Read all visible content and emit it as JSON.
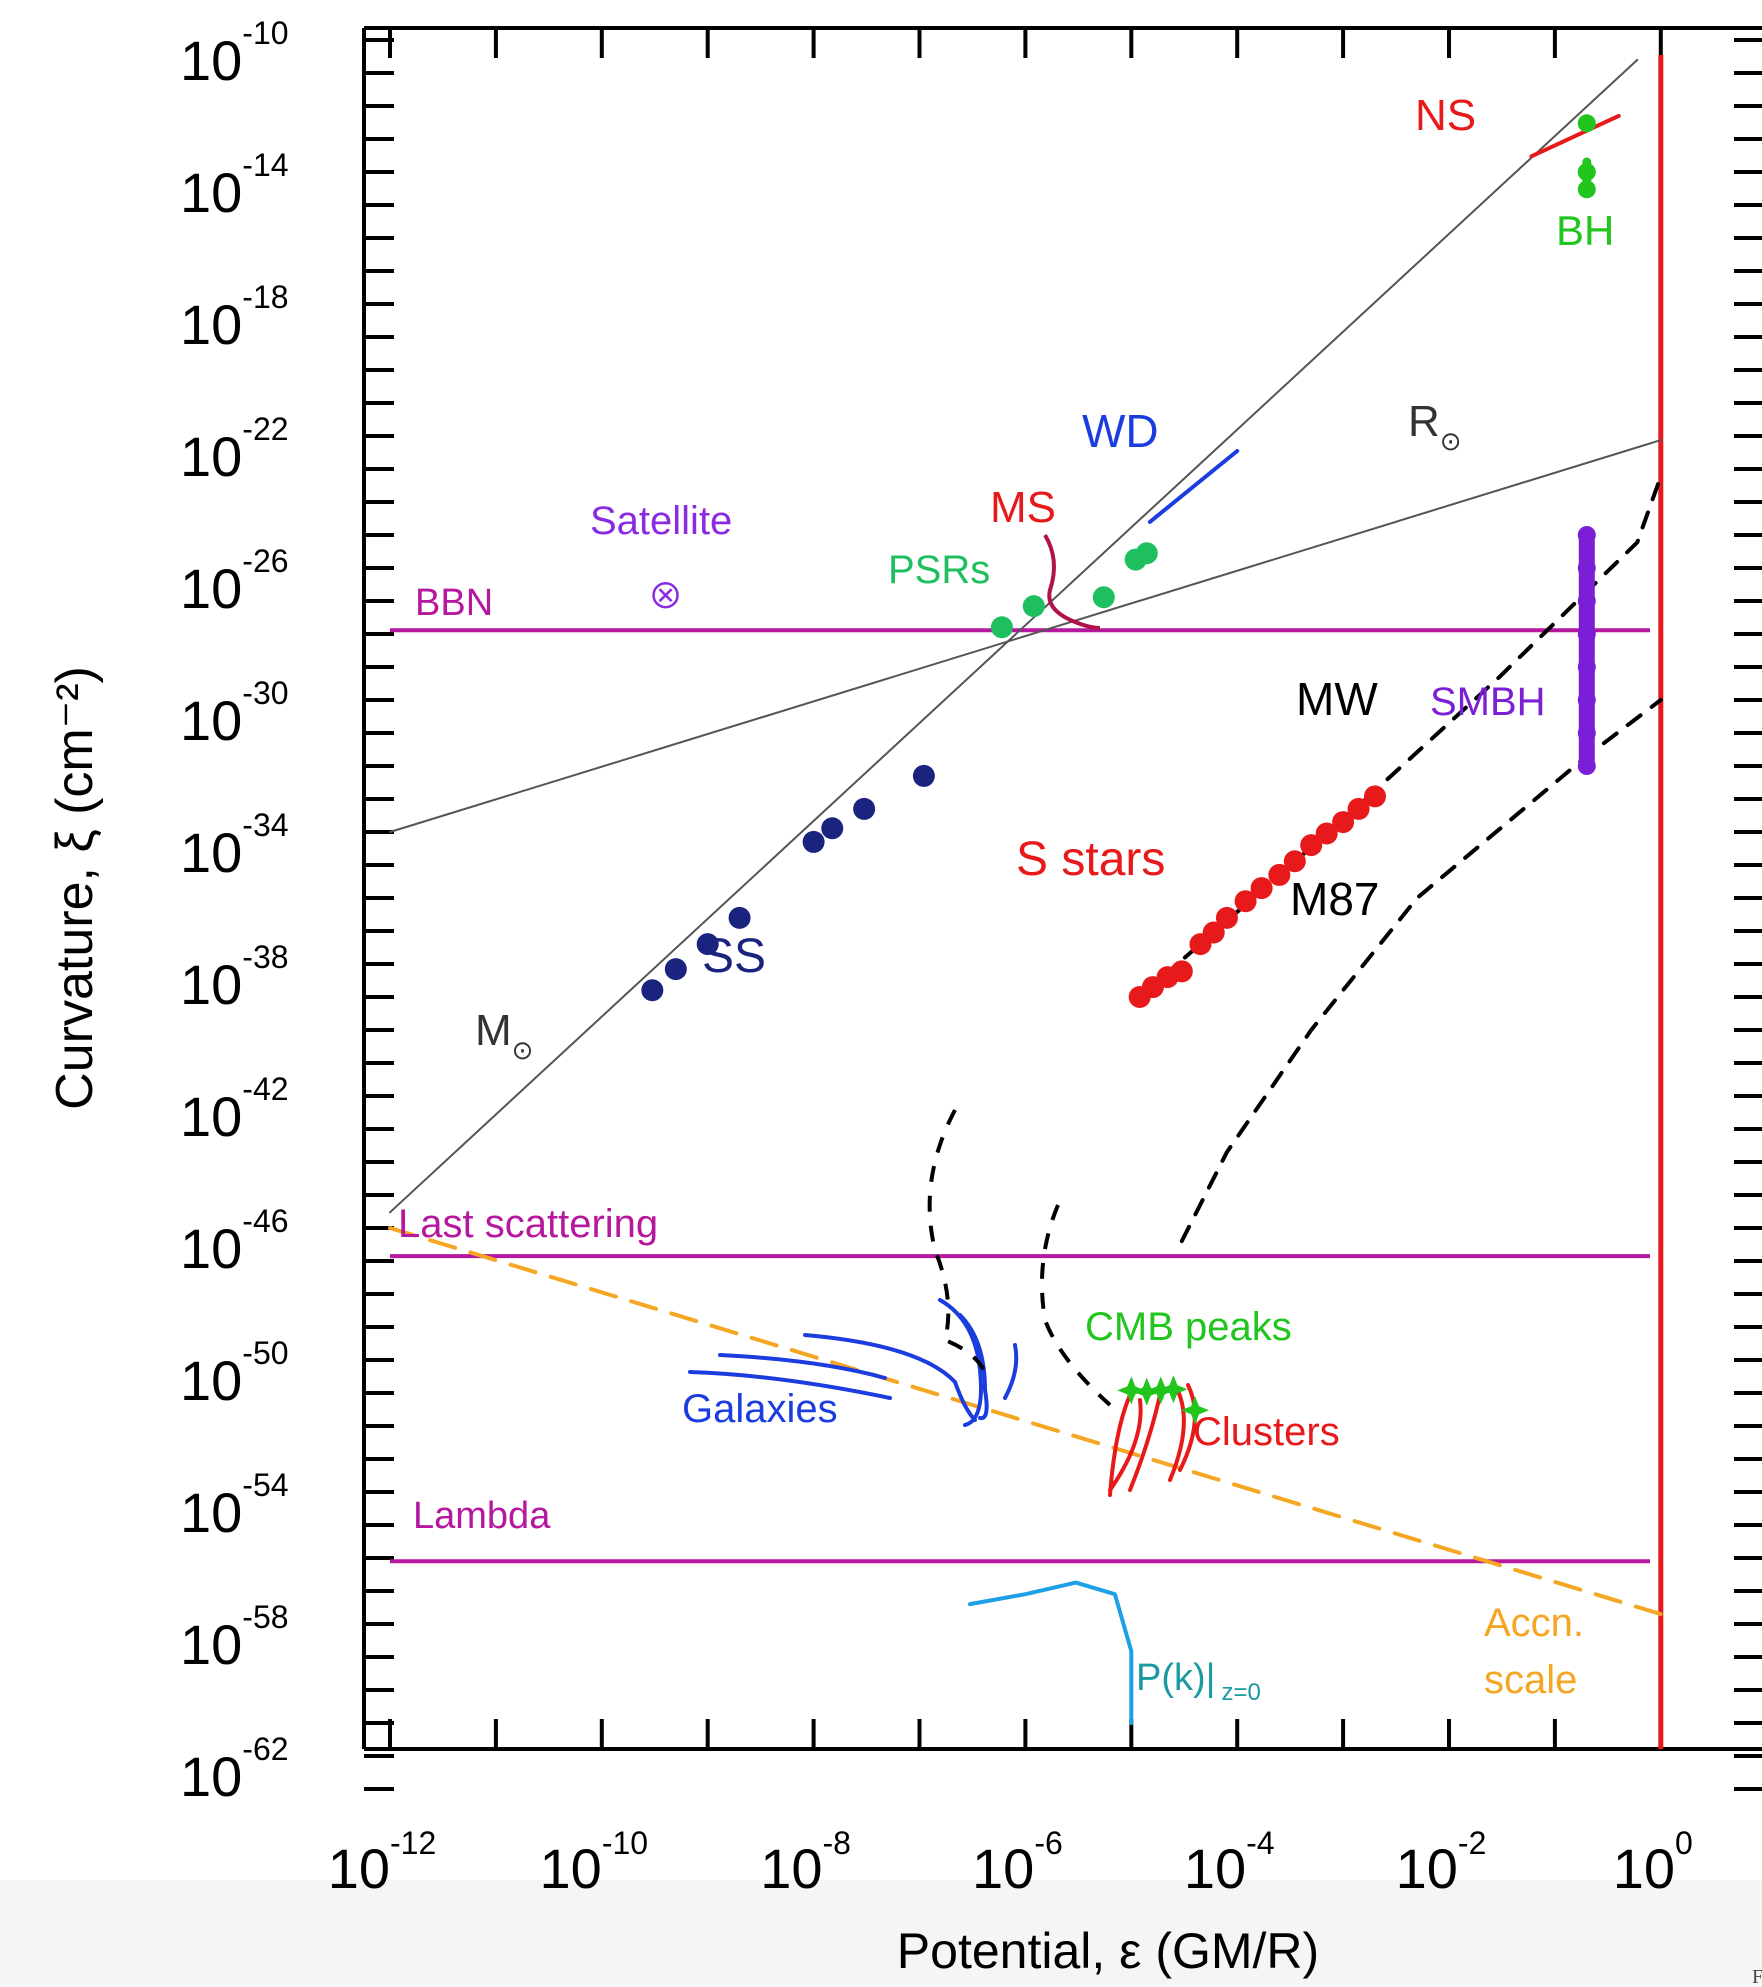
{
  "chart_data": {
    "type": "scatter",
    "xlabel": "Potential, ε (GM/R)",
    "ylabel": "Curvature, ξ (cm⁻²)",
    "x_scale": "log",
    "y_scale": "log",
    "xlim": [
      1e-12,
      1.5
    ],
    "ylim": [
      1e-64,
      1e-10
    ],
    "x_ticks": [
      {
        "value": 1e-12,
        "mantissa": "10",
        "exp": "-12"
      },
      {
        "value": 1e-10,
        "mantissa": "10",
        "exp": "-10"
      },
      {
        "value": 1e-08,
        "mantissa": "10",
        "exp": "-8"
      },
      {
        "value": 1e-06,
        "mantissa": "10",
        "exp": "-6"
      },
      {
        "value": 0.0001,
        "mantissa": "10",
        "exp": "-4"
      },
      {
        "value": 0.01,
        "mantissa": "10",
        "exp": "-2"
      },
      {
        "value": 1,
        "mantissa": "10",
        "exp": "0"
      }
    ],
    "y_ticks": [
      {
        "value": 1e-10,
        "mantissa": "10",
        "exp": "-10"
      },
      {
        "value": 1e-14,
        "mantissa": "10",
        "exp": "-14"
      },
      {
        "value": 1e-18,
        "mantissa": "10",
        "exp": "-18"
      },
      {
        "value": 1e-22,
        "mantissa": "10",
        "exp": "-22"
      },
      {
        "value": 1e-26,
        "mantissa": "10",
        "exp": "-26"
      },
      {
        "value": 1e-30,
        "mantissa": "10",
        "exp": "-30"
      },
      {
        "value": 1e-34,
        "mantissa": "10",
        "exp": "-34"
      },
      {
        "value": 1e-38,
        "mantissa": "10",
        "exp": "-38"
      },
      {
        "value": 1e-42,
        "mantissa": "10",
        "exp": "-42"
      },
      {
        "value": 1e-46,
        "mantissa": "10",
        "exp": "-46"
      },
      {
        "value": 1e-50,
        "mantissa": "10",
        "exp": "-50"
      },
      {
        "value": 1e-54,
        "mantissa": "10",
        "exp": "-54"
      },
      {
        "value": 1e-58,
        "mantissa": "10",
        "exp": "-58"
      },
      {
        "value": 1e-62,
        "mantissa": "10",
        "exp": "-62"
      }
    ],
    "hlines": [
      {
        "label": "BBN",
        "y": 1.3e-28,
        "color": "#b5179e"
      },
      {
        "label": "Last scattering",
        "y": 1.4e-47,
        "color": "#b5179e"
      },
      {
        "label": "Lambda",
        "y": 8e-57,
        "color": "#b5179e"
      }
    ],
    "vline": {
      "x": 1,
      "color": "#e8191a"
    },
    "series": [
      {
        "name": "SS",
        "kind": "scatter",
        "color": "#1a237e",
        "points": [
          [
            3e-10,
            1.6e-39
          ],
          [
            5e-10,
            7e-39
          ],
          [
            1e-09,
            4e-38
          ],
          [
            2e-09,
            2.5e-37
          ],
          [
            1e-08,
            5e-35
          ],
          [
            1.5e-08,
            1.3e-34
          ],
          [
            3e-08,
            5e-34
          ],
          [
            1.1e-07,
            5e-33
          ]
        ]
      },
      {
        "name": "PSRs",
        "kind": "scatter",
        "color": "#1fbf5f",
        "points": [
          [
            6e-07,
            1.6e-28
          ],
          [
            1.2e-06,
            7e-28
          ],
          [
            5.5e-06,
            1.3e-27
          ],
          [
            1.1e-05,
            1.8e-26
          ],
          [
            1.4e-05,
            2.8e-26
          ]
        ]
      },
      {
        "name": "S stars",
        "kind": "scatter",
        "color": "#e8191a",
        "points": [
          [
            1.2e-05,
            1e-39
          ],
          [
            1.6e-05,
            2e-39
          ],
          [
            2.2e-05,
            4e-39
          ],
          [
            3e-05,
            6e-39
          ],
          [
            4.5e-05,
            4e-38
          ],
          [
            6e-05,
            9e-38
          ],
          [
            8e-05,
            2.5e-37
          ],
          [
            0.00012,
            8e-37
          ],
          [
            0.00017,
            2e-36
          ],
          [
            0.00025,
            5e-36
          ],
          [
            0.00035,
            1.3e-35
          ],
          [
            0.0005,
            4e-35
          ],
          [
            0.0007,
            9e-35
          ],
          [
            0.001,
            2e-34
          ],
          [
            0.0014,
            5e-34
          ],
          [
            0.002,
            1.2e-33
          ]
        ]
      },
      {
        "name": "CMB peaks",
        "kind": "scatter",
        "color": "#22c41e",
        "points": [
          [
            1e-05,
            1.2e-51
          ],
          [
            1.4e-05,
            1.1e-51
          ],
          [
            1.9e-05,
            1.2e-51
          ],
          [
            2.5e-05,
            1.3e-51
          ],
          [
            4e-05,
            3e-52
          ]
        ]
      },
      {
        "name": "SMBH",
        "kind": "scatter",
        "color": "#7b1fd6",
        "points": [
          [
            0.2,
            1e-25
          ],
          [
            0.2,
            1e-26
          ],
          [
            0.2,
            1e-27
          ],
          [
            0.2,
            1e-28
          ],
          [
            0.2,
            1e-29
          ],
          [
            0.2,
            1e-30
          ],
          [
            0.2,
            1e-31
          ],
          [
            0.2,
            1e-32
          ]
        ]
      },
      {
        "name": "BH",
        "kind": "scatter",
        "color": "#22c41e",
        "points": [
          [
            0.2,
            3e-13
          ],
          [
            0.2,
            1e-14
          ],
          [
            0.2,
            3e-15
          ]
        ]
      },
      {
        "name": "Satellite",
        "kind": "scatter",
        "color": "#8a2be2",
        "points": [
          [
            4e-10,
            1.5e-27
          ]
        ]
      },
      {
        "name": "M⊙",
        "kind": "line",
        "color": "#555555",
        "points": [
          [
            1e-12,
            3e-46
          ],
          [
            0.6,
            2.5e-11
          ]
        ]
      },
      {
        "name": "R⊙",
        "kind": "line",
        "color": "#555555",
        "points": [
          [
            1e-12,
            1e-34
          ],
          [
            1,
            7.5e-23
          ]
        ]
      },
      {
        "name": "MW",
        "kind": "dashed",
        "color": "#000000",
        "points": [
          [
            1.2e-05,
            1e-39
          ],
          [
            0.0012,
            4e-34
          ],
          [
            0.03,
            5e-30
          ],
          [
            0.6,
            6e-26
          ],
          [
            1,
            6e-24
          ]
        ]
      },
      {
        "name": "M87",
        "kind": "dashed",
        "color": "#000000",
        "points": [
          [
            3e-05,
            4e-47
          ],
          [
            8e-05,
            2e-44
          ],
          [
            0.0005,
            1e-40
          ],
          [
            0.005,
            1e-36
          ],
          [
            0.2,
            2e-32
          ],
          [
            1,
            1e-30
          ]
        ]
      },
      {
        "name": "Accn. scale",
        "kind": "dashed",
        "color": "#f5a623",
        "points": [
          [
            1e-12,
            1e-46
          ],
          [
            1,
            2e-58
          ]
        ]
      },
      {
        "name": "NS",
        "kind": "line",
        "color": "#e8191a",
        "points": [
          [
            0.06,
            3e-14
          ],
          [
            0.4,
            5e-13
          ]
        ]
      },
      {
        "name": "WD",
        "kind": "line",
        "color": "#1b3de0",
        "points": [
          [
            1.5e-05,
            2.5e-25
          ],
          [
            0.0001,
            3.5e-23
          ]
        ]
      },
      {
        "name": "P(k)|z=0",
        "kind": "line",
        "color": "#1ea0e6",
        "points": [
          [
            3e-07,
            4e-58
          ],
          [
            1e-06,
            8e-58
          ],
          [
            3e-06,
            1.8e-57
          ],
          [
            7e-06,
            8e-58
          ],
          [
            1e-05,
            1.5e-59
          ],
          [
            1e-05,
            1e-61
          ]
        ]
      }
    ],
    "annotations": [
      {
        "text": "NS",
        "color": "#e8191a"
      },
      {
        "text": "BH",
        "color": "#22c41e"
      },
      {
        "text": "WD",
        "color": "#1b3de0"
      },
      {
        "text": "R",
        "sub": "⊙",
        "color": "#333333"
      },
      {
        "text": "MS",
        "color": "#e8191a"
      },
      {
        "text": "Satellite",
        "color": "#8a2be2"
      },
      {
        "text": "PSRs",
        "color": "#1fbf5f"
      },
      {
        "text": "BBN",
        "color": "#b5179e"
      },
      {
        "text": "MW",
        "color": "#000000"
      },
      {
        "text": "SMBH",
        "color": "#7b1fd6"
      },
      {
        "text": "S stars",
        "color": "#e8191a"
      },
      {
        "text": "M87",
        "color": "#000000"
      },
      {
        "text": "SS",
        "color": "#1a237e"
      },
      {
        "text": "M",
        "sub": "⊙",
        "color": "#333333"
      },
      {
        "text": "Last scattering",
        "color": "#b5179e"
      },
      {
        "text": "CMB peaks",
        "color": "#22c41e"
      },
      {
        "text": "Galaxies",
        "color": "#1b3de0"
      },
      {
        "text": "Clusters",
        "color": "#e8191a"
      },
      {
        "text": "Lambda",
        "color": "#b5179e"
      },
      {
        "text": "P(k)|",
        "sub": "z=0",
        "color": "#1a9aa0"
      },
      {
        "text": "Accn.",
        "color": "#f5a623"
      },
      {
        "text": "scale",
        "color": "#f5a623"
      }
    ]
  },
  "page_footer": {
    "stray_glyph": "F"
  }
}
